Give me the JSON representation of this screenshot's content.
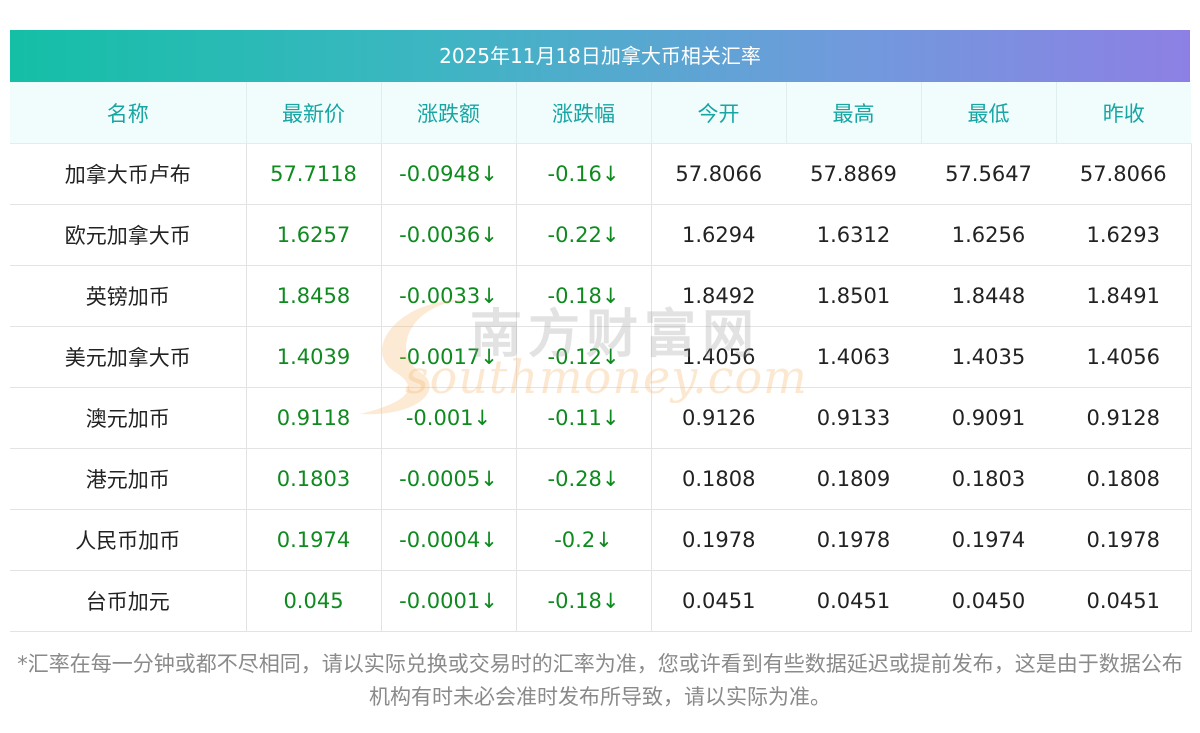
{
  "title": "2025年11月18日加拿大币相关汇率",
  "headers": [
    "名称",
    "最新价",
    "涨跌额",
    "涨跌幅",
    "今开",
    "最高",
    "最低",
    "昨收"
  ],
  "rows": [
    {
      "name": "加拿大币卢布",
      "latest": "57.7118",
      "change": "-0.0948↓",
      "change_pct": "-0.16↓",
      "open": "57.8066",
      "high": "57.8869",
      "low": "57.5647",
      "prev_close": "57.8066"
    },
    {
      "name": "欧元加拿大币",
      "latest": "1.6257",
      "change": "-0.0036↓",
      "change_pct": "-0.22↓",
      "open": "1.6294",
      "high": "1.6312",
      "low": "1.6256",
      "prev_close": "1.6293"
    },
    {
      "name": "英镑加币",
      "latest": "1.8458",
      "change": "-0.0033↓",
      "change_pct": "-0.18↓",
      "open": "1.8492",
      "high": "1.8501",
      "low": "1.8448",
      "prev_close": "1.8491"
    },
    {
      "name": "美元加拿大币",
      "latest": "1.4039",
      "change": "-0.0017↓",
      "change_pct": "-0.12↓",
      "open": "1.4056",
      "high": "1.4063",
      "low": "1.4035",
      "prev_close": "1.4056"
    },
    {
      "name": "澳元加币",
      "latest": "0.9118",
      "change": "-0.001↓",
      "change_pct": "-0.11↓",
      "open": "0.9126",
      "high": "0.9133",
      "low": "0.9091",
      "prev_close": "0.9128"
    },
    {
      "name": "港元加币",
      "latest": "0.1803",
      "change": "-0.0005↓",
      "change_pct": "-0.28↓",
      "open": "0.1808",
      "high": "0.1809",
      "low": "0.1803",
      "prev_close": "0.1808"
    },
    {
      "name": "人民币加币",
      "latest": "0.1974",
      "change": "-0.0004↓",
      "change_pct": "-0.2↓",
      "open": "0.1978",
      "high": "0.1978",
      "low": "0.1974",
      "prev_close": "0.1978"
    },
    {
      "name": "台币加元",
      "latest": "0.045",
      "change": "-0.0001↓",
      "change_pct": "-0.18↓",
      "open": "0.0451",
      "high": "0.0451",
      "low": "0.0450",
      "prev_close": "0.0451"
    }
  ],
  "note": "*汇率在每一分钟或都不尽相同，请以实际兑换或交易时的汇率为准，您或许看到有些数据延迟或提前发布，这是由于数据公布机构有时未必会准时发布所导致，请以实际为准。",
  "watermark": {
    "cn": "南方财富网",
    "en": "southmoney.com"
  },
  "colors": {
    "accent": "#17a6a4",
    "positive_down": "#0e8a1f",
    "header_bg": "#f1fdfd"
  }
}
